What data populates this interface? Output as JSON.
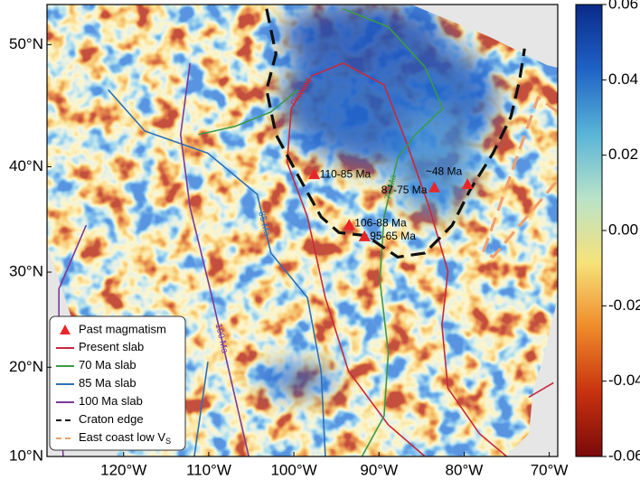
{
  "chart_data": {
    "type": "map",
    "projection": "mercator",
    "xlim": [
      -129,
      -69
    ],
    "ylim": [
      10,
      52.9
    ],
    "xticks": [
      {
        "value": -120,
        "label": "120°W"
      },
      {
        "value": -110,
        "label": "110°W"
      },
      {
        "value": -100,
        "label": "100°W"
      },
      {
        "value": -90,
        "label": "90°W"
      },
      {
        "value": -80,
        "label": "80°W"
      },
      {
        "value": -70,
        "label": "70°W"
      }
    ],
    "yticks": [
      {
        "value": 10,
        "label": "10°N"
      },
      {
        "value": 20,
        "label": "20°N"
      },
      {
        "value": 30,
        "label": "30°N"
      },
      {
        "value": 40,
        "label": "40°N"
      },
      {
        "value": 50,
        "label": "50°N"
      }
    ],
    "points": {
      "name": "Past magmatism",
      "color": "#e8262a",
      "x": [
        -97.6,
        -93.5,
        -91.7,
        -83.5,
        -79.6
      ],
      "y": [
        39.3,
        34.6,
        33.5,
        38.1,
        38.4
      ],
      "labels": [
        "110-85 Ma",
        "106-88 Ma",
        "95-65 Ma",
        "87-75 Ma",
        "~48 Ma"
      ]
    },
    "series": [
      {
        "name": "Present slab",
        "label": "Present",
        "color": "#c8283c",
        "dash": false,
        "x": [
          -84.6,
          -88.9,
          -93.6,
          -96.3,
          -98.4,
          -100.8,
          -100.3,
          -97.9,
          -94.2,
          -89.4,
          -86.7,
          -84.1,
          -81.9,
          -82.6,
          -81.9,
          -78.2,
          -75.0,
          null,
          -72.4,
          -69.5
        ],
        "y": [
          10,
          13.6,
          19.6,
          27.4,
          35.4,
          40.4,
          45.0,
          47.6,
          48.6,
          46.9,
          42.0,
          36.3,
          30.1,
          24.5,
          17.7,
          12.6,
          10,
          null,
          16.7,
          18.3
        ]
      },
      {
        "name": "70 Ma slab",
        "label": "70 Ma",
        "color": "#3a9a4a",
        "dash": false,
        "x": [
          -94.2,
          -88.9,
          -84.6,
          -82.5,
          -85.7,
          -87.8,
          -89.4,
          -89.9,
          -88.9,
          -89.4,
          -92.0,
          null,
          -99.5,
          -102.7,
          -106.9,
          -111.2
        ],
        "y": [
          52.6,
          51.3,
          48.3,
          45.0,
          42.8,
          40.8,
          35.4,
          29.2,
          21.6,
          14.6,
          10,
          null,
          46.5,
          44.7,
          43.5,
          42.8
        ]
      },
      {
        "name": "85 Ma slab",
        "label": "85 Ma",
        "color": "#2f6fb5",
        "dash": false,
        "x": [
          -121.8,
          -117.5,
          -110.1,
          -104.3,
          -102.7,
          -98.4,
          -96.8,
          -96.3,
          null,
          -110.1,
          -111.7
        ],
        "y": [
          46.5,
          43.1,
          41.2,
          37.5,
          31.9,
          27.4,
          19.6,
          10,
          null,
          20.6,
          10
        ]
      },
      {
        "name": "100 Ma slab",
        "label": "100 Ma",
        "color": "#7b3a9a",
        "dash": false,
        "x": [
          -112.2,
          -113.3,
          -112.2,
          -109.6,
          -107.4,
          -105.3,
          null,
          -124.4,
          -127.6,
          -127.6,
          -127.1
        ],
        "y": [
          48.6,
          42.8,
          36.3,
          27.4,
          18.7,
          10,
          null,
          34.6,
          28.3,
          18.7,
          10
        ]
      },
      {
        "name": "Craton edge",
        "color": "#111111",
        "dash": true,
        "x": [
          -103.2,
          -102.1,
          -103.2,
          -102.1,
          -99.5,
          -96.8,
          -94.7,
          -91.5,
          -87.8,
          -84.6,
          -81.4,
          -79.3,
          -76.6,
          -74.5,
          -73.5,
          -72.9
        ],
        "y": [
          52.6,
          49.3,
          46.5,
          42.8,
          39.2,
          35.4,
          33.9,
          33.6,
          31.5,
          31.9,
          34.6,
          37.9,
          41.2,
          44.3,
          47.2,
          49.7
        ]
      },
      {
        "name": "East coast low V",
        "name_subscript": "S",
        "color": "#f0a070",
        "dash": true,
        "x": [
          -69.0,
          -71.3,
          -77.7,
          -76.6,
          -69.0
        ],
        "y": [
          44.7,
          45.9,
          32.1,
          31.5,
          38.8
        ]
      }
    ],
    "colorbar": {
      "lim": [
        -0.06,
        0.06
      ],
      "ticks": [
        0.06,
        0.04,
        0.02,
        {
          "value": 0,
          "label": "0.00"
        },
        -0.02,
        -0.04,
        -0.06
      ],
      "colors": [
        "#7a0a0a",
        "#c8320f",
        "#ef8a2a",
        "#f6e27a",
        "#b9e3c9",
        "#58b4d8",
        "#1f62c4",
        "#0a2a8a"
      ]
    }
  }
}
